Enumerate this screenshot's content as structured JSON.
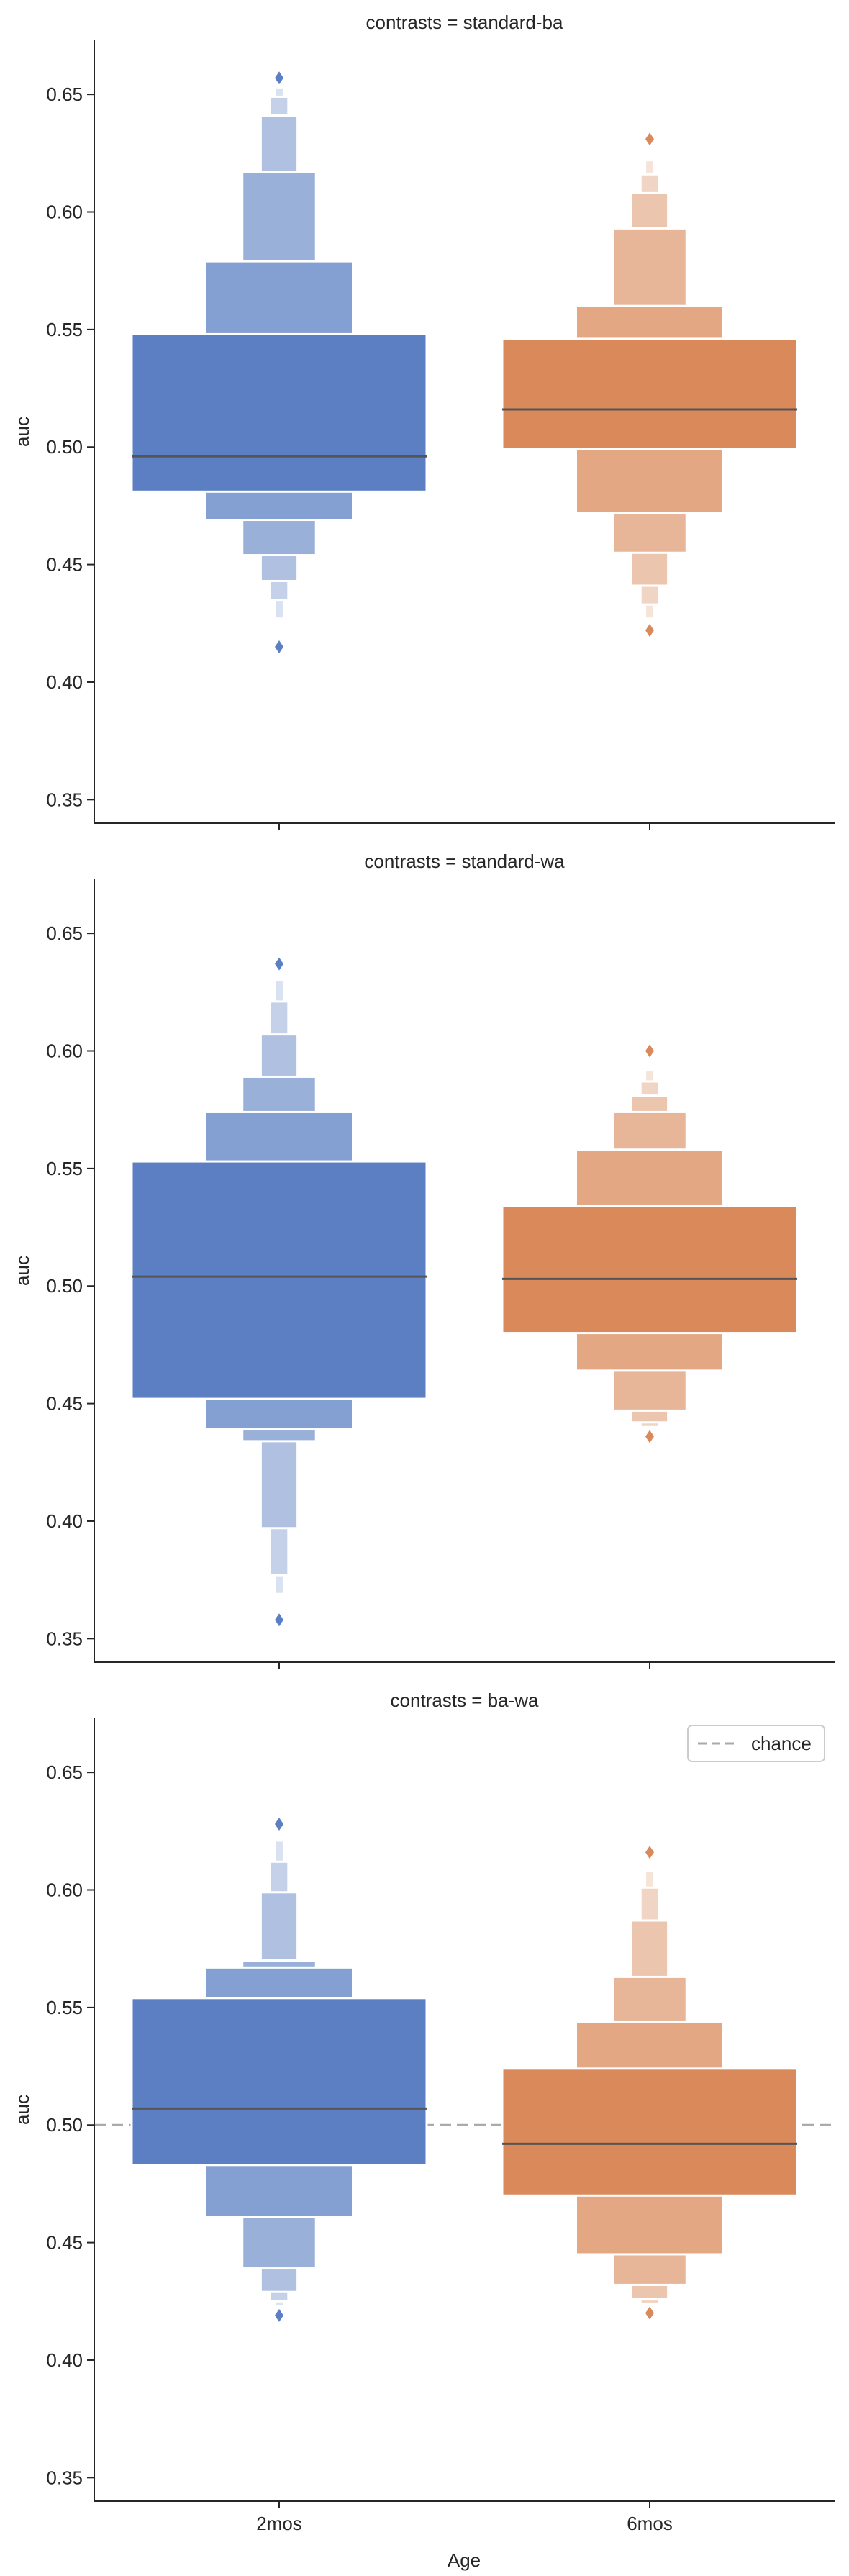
{
  "chart_data": {
    "type": "boxen",
    "shared": {
      "categories": [
        "2mos",
        "6mos"
      ],
      "xlabel": "Age",
      "ylabel": "auc",
      "ylim": [
        0.34,
        0.673
      ],
      "yticks": [
        0.35,
        0.4,
        0.45,
        0.5,
        0.55,
        0.6,
        0.65
      ],
      "ytick_labels": [
        "0.35",
        "0.40",
        "0.45",
        "0.50",
        "0.55",
        "0.60",
        "0.65"
      ],
      "colors": {
        "2mos": "#5b7fc2",
        "6mos": "#d9895a",
        "median": "#555555",
        "chance": "#aaaaaa"
      },
      "grid": false,
      "legend_position": "top-right"
    },
    "panels": [
      {
        "title": "contrasts = standard-ba",
        "groups": [
          {
            "category": "2mos",
            "median": 0.496,
            "boxes": [
              {
                "low": 0.481,
                "high": 0.548
              },
              {
                "low": 0.469,
                "high": 0.579
              },
              {
                "low": 0.454,
                "high": 0.617
              },
              {
                "low": 0.443,
                "high": 0.641
              },
              {
                "low": 0.435,
                "high": 0.649
              },
              {
                "low": 0.427,
                "high": 0.653
              }
            ],
            "outliers": [
              0.415,
              0.657
            ]
          },
          {
            "category": "6mos",
            "median": 0.516,
            "boxes": [
              {
                "low": 0.499,
                "high": 0.546
              },
              {
                "low": 0.472,
                "high": 0.56
              },
              {
                "low": 0.455,
                "high": 0.593
              },
              {
                "low": 0.441,
                "high": 0.608
              },
              {
                "low": 0.433,
                "high": 0.616
              },
              {
                "low": 0.427,
                "high": 0.622
              }
            ],
            "outliers": [
              0.422,
              0.631
            ]
          }
        ]
      },
      {
        "title": "contrasts = standard-wa",
        "groups": [
          {
            "category": "2mos",
            "median": 0.504,
            "boxes": [
              {
                "low": 0.452,
                "high": 0.553
              },
              {
                "low": 0.439,
                "high": 0.574
              },
              {
                "low": 0.434,
                "high": 0.589
              },
              {
                "low": 0.397,
                "high": 0.607
              },
              {
                "low": 0.377,
                "high": 0.621
              },
              {
                "low": 0.369,
                "high": 0.63
              }
            ],
            "outliers": [
              0.358,
              0.637
            ]
          },
          {
            "category": "6mos",
            "median": 0.503,
            "boxes": [
              {
                "low": 0.48,
                "high": 0.534
              },
              {
                "low": 0.464,
                "high": 0.558
              },
              {
                "low": 0.447,
                "high": 0.574
              },
              {
                "low": 0.442,
                "high": 0.581
              },
              {
                "low": 0.44,
                "high": 0.587
              },
              {
                "low": 0.439,
                "high": 0.592
              }
            ],
            "outliers": [
              0.436,
              0.6
            ]
          }
        ]
      },
      {
        "title": "contrasts = ba-wa",
        "reference_line": {
          "y": 0.5,
          "label": "chance"
        },
        "groups": [
          {
            "category": "2mos",
            "median": 0.507,
            "boxes": [
              {
                "low": 0.483,
                "high": 0.554
              },
              {
                "low": 0.461,
                "high": 0.567
              },
              {
                "low": 0.439,
                "high": 0.57
              },
              {
                "low": 0.429,
                "high": 0.599
              },
              {
                "low": 0.425,
                "high": 0.612
              },
              {
                "low": 0.423,
                "high": 0.621
              }
            ],
            "outliers": [
              0.419,
              0.628
            ]
          },
          {
            "category": "6mos",
            "median": 0.492,
            "boxes": [
              {
                "low": 0.47,
                "high": 0.524
              },
              {
                "low": 0.445,
                "high": 0.544
              },
              {
                "low": 0.432,
                "high": 0.563
              },
              {
                "low": 0.426,
                "high": 0.587
              },
              {
                "low": 0.424,
                "high": 0.601
              },
              {
                "low": 0.423,
                "high": 0.608
              }
            ],
            "outliers": [
              0.42,
              0.616
            ]
          }
        ]
      }
    ]
  }
}
